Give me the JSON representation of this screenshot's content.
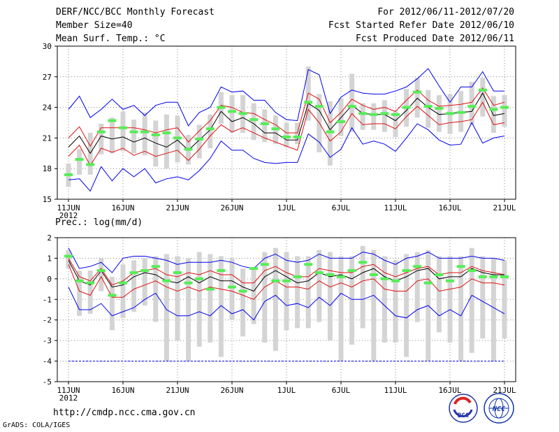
{
  "header": {
    "title": "DERF/NCC/BCC Monthly Forecast",
    "member_size": "Member Size=40",
    "variable": "Mean Surf. Temp.: °C",
    "period": "For 2012/06/11-2012/07/20",
    "fcst_started": "Fcst Started Refer Date 2012/06/10",
    "fcst_produced": "Fcst Produced Date 2012/06/11"
  },
  "footer": {
    "url": "http://cmdp.ncc.cma.gov.cn",
    "grads": "GrADS: COLA/IGES",
    "logo1_text": "BCC",
    "logo2_text": "NCC"
  },
  "colors": {
    "max_min": "#0000ee",
    "pct": "#dd1111",
    "mean": "#000000",
    "obs": "#55ee55",
    "box": "#d4d4d4",
    "grid": "#888888"
  },
  "chart_data": [
    {
      "type": "line",
      "title": "Mean Surf. Temp.: °C",
      "xlabel": "",
      "ylabel": "°C",
      "ylim": [
        15,
        30
      ],
      "yticks": [
        15,
        18,
        21,
        24,
        27,
        30
      ],
      "days": 40,
      "xticks": [
        {
          "day": 1,
          "label": "11JUN",
          "sub": "2012"
        },
        {
          "day": 6,
          "label": "16JUN"
        },
        {
          "day": 11,
          "label": "21JUN"
        },
        {
          "day": 16,
          "label": "26JUN"
        },
        {
          "day": 21,
          "label": "1JUL"
        },
        {
          "day": 26,
          "label": "6JUL"
        },
        {
          "day": 31,
          "label": "11JUL"
        },
        {
          "day": 36,
          "label": "16JUL"
        },
        {
          "day": 41,
          "label": "21JUL"
        }
      ],
      "series": [
        {
          "name": "max",
          "values": [
            23.8,
            25.1,
            23,
            23.8,
            24.8,
            23.8,
            24.2,
            23.2,
            24.2,
            24.5,
            24.5,
            22.2,
            23.5,
            24,
            26,
            25.5,
            25.6,
            24.7,
            24.7,
            23.5,
            22.8,
            22.7,
            27.7,
            27.2,
            23.4,
            25,
            25.7,
            25.4,
            25.3,
            25.3,
            25.6,
            26,
            26.8,
            27.8,
            26.1,
            24.5,
            26,
            26,
            27.5,
            25.6,
            25.6
          ]
        },
        {
          "name": "p90",
          "values": [
            21,
            22.1,
            20.2,
            22,
            22,
            22,
            22,
            21.8,
            21.5,
            21.8,
            22,
            20.6,
            21.7,
            22.7,
            24.2,
            24,
            23.5,
            23.4,
            22.8,
            22.3,
            21.5,
            21.5,
            25.4,
            24.8,
            22.5,
            23.5,
            24.8,
            24.2,
            23.8,
            24,
            23.6,
            24.7,
            25.7,
            24.7,
            24.1,
            24.2,
            24.3,
            24.5,
            25.9,
            24.2,
            24.5
          ]
        },
        {
          "name": "mean",
          "values": [
            20.1,
            21.2,
            19.5,
            21.2,
            20.9,
            21.1,
            20.6,
            21,
            20.5,
            20.1,
            20.8,
            19.8,
            20.8,
            21.8,
            23.6,
            22.6,
            23,
            22.4,
            21.5,
            21.5,
            20.8,
            20.8,
            24.4,
            23.7,
            21.8,
            23,
            24.2,
            23.4,
            23.3,
            23.3,
            22.7,
            23.7,
            24.9,
            24,
            23.3,
            23.4,
            23.5,
            23.6,
            25.4,
            23.2,
            23.4
          ]
        },
        {
          "name": "p10",
          "values": [
            19.2,
            20.3,
            18.3,
            20,
            19.6,
            20,
            19.3,
            19.7,
            19.2,
            19.5,
            19.8,
            18.8,
            19.9,
            21.2,
            22.3,
            21.6,
            22,
            21.5,
            21,
            20.6,
            20.2,
            19.8,
            23.8,
            22.5,
            20.7,
            21.6,
            23.4,
            22.3,
            22.4,
            22.4,
            21.9,
            23.1,
            24.1,
            23.2,
            22.3,
            22.5,
            22.6,
            22.8,
            24.5,
            22.3,
            22.5
          ]
        },
        {
          "name": "min",
          "values": [
            16.9,
            17,
            15.8,
            18.2,
            16.8,
            18,
            17.2,
            18,
            16.6,
            17,
            17.2,
            16.9,
            17.8,
            19,
            20.7,
            19.8,
            19.8,
            19,
            18.6,
            18.5,
            18.6,
            18.6,
            21.4,
            20.6,
            19.1,
            19.9,
            22,
            20.4,
            20.7,
            20.4,
            19.7,
            21,
            22.4,
            21.8,
            20.8,
            20.3,
            20.4,
            22.5,
            20.5,
            21,
            21.2
          ]
        },
        {
          "name": "obs",
          "values": [
            17.4,
            18.9,
            18.4,
            21.6,
            22.7,
            22,
            21.6,
            21.6,
            21.3,
            21.5,
            21,
            19.9,
            20.9,
            21.9,
            24,
            23.6,
            23.4,
            22.8,
            22.4,
            21.9,
            21.1,
            21.1,
            24.5,
            24.1,
            21.6,
            22.6,
            24.1,
            23.4,
            23.3,
            23.4,
            23.3,
            24,
            25.5,
            24.1,
            23.9,
            23.4,
            23.5,
            24.1,
            25.7,
            23.8,
            24
          ]
        }
      ],
      "box_q1": [
        16.2,
        17.4,
        17.4,
        19.4,
        19.5,
        19.7,
        19.5,
        19.3,
        18.2,
        18,
        18.6,
        18.4,
        19,
        20,
        22.4,
        21.5,
        21.5,
        20.8,
        20.6,
        20.4,
        20.1,
        20.4,
        22.7,
        19.6,
        18.3,
        21.2,
        21.6,
        21.8,
        21.8,
        21.6,
        21.1,
        22.1,
        23,
        22,
        21.6,
        21.4,
        21.6,
        22.3,
        23.1,
        21.5,
        22.1
      ],
      "box_q3": [
        18.5,
        19.9,
        21.5,
        22.4,
        23,
        23.6,
        22.8,
        23.5,
        22.7,
        23.3,
        23.2,
        21.3,
        22.3,
        23.3,
        25.5,
        25.2,
        25.2,
        24.4,
        23.8,
        23.2,
        22.5,
        22.5,
        28,
        25.3,
        24.6,
        24.9,
        27.3,
        24.4,
        24.4,
        24.7,
        23.6,
        25.8,
        26.9,
        25.7,
        25.2,
        25.3,
        25.6,
        26.5,
        26.9,
        25.1,
        25.2
      ]
    },
    {
      "type": "line",
      "title": "Prec.: log(mm/d)",
      "xlabel": "",
      "ylabel": "log(mm/d)",
      "ylim": [
        -5,
        2
      ],
      "yticks": [
        -5,
        -4,
        -3,
        -2,
        -1,
        0,
        1,
        2
      ],
      "days": 40,
      "xticks": [
        {
          "day": 1,
          "label": "11JUN",
          "sub": "2012"
        },
        {
          "day": 6,
          "label": "16JUN"
        },
        {
          "day": 11,
          "label": "21JUN"
        },
        {
          "day": 16,
          "label": "26JUN"
        },
        {
          "day": 21,
          "label": "1JUL"
        },
        {
          "day": 26,
          "label": "6JUL"
        },
        {
          "day": 31,
          "label": "11JUL"
        },
        {
          "day": 36,
          "label": "16JUL"
        },
        {
          "day": 41,
          "label": "21JUL"
        }
      ],
      "series": [
        {
          "name": "max",
          "values": [
            1.5,
            0.5,
            0.6,
            0.8,
            0.3,
            1,
            1.1,
            1.1,
            1,
            0.9,
            0.7,
            0.8,
            0.8,
            0.8,
            0.9,
            0.8,
            0.6,
            0.5,
            1,
            1.2,
            0.9,
            0.8,
            0.9,
            1.2,
            1,
            1,
            1,
            1.3,
            1.2,
            0.9,
            0.7,
            1,
            1.1,
            1.3,
            1,
            1,
            1,
            1.1,
            1,
            1,
            0.9
          ]
        },
        {
          "name": "p90",
          "values": [
            1,
            0.1,
            -0.1,
            0.5,
            -0.3,
            -0.1,
            0.3,
            0.4,
            0.5,
            0.2,
            0.1,
            0.3,
            0.2,
            0.4,
            0.2,
            0.2,
            -0.2,
            -0.2,
            0.4,
            0.6,
            0.3,
            0.1,
            0.1,
            0.5,
            0.4,
            0.3,
            0.3,
            0.6,
            0.7,
            0.3,
            0.1,
            0.3,
            0.5,
            0.6,
            0.2,
            0.3,
            0.3,
            0.6,
            0.4,
            0.3,
            0.2
          ]
        },
        {
          "name": "mean",
          "values": [
            0.9,
            -0.1,
            -0.3,
            0.4,
            -0.4,
            -0.3,
            0.1,
            0.3,
            0.2,
            -0.1,
            -0.2,
            0.1,
            -0.2,
            0.1,
            -0.1,
            -0.1,
            -0.4,
            -0.6,
            0.1,
            0.4,
            0.1,
            -0.2,
            -0.1,
            0.3,
            0.1,
            0.2,
            0,
            0.3,
            0.5,
            0.1,
            -0.1,
            0.1,
            0.4,
            0.5,
            0,
            0.1,
            0.1,
            0.5,
            0.3,
            0.2,
            0.2
          ]
        },
        {
          "name": "p10",
          "values": [
            0.7,
            -0.6,
            -0.8,
            0.1,
            -0.9,
            -0.9,
            -0.5,
            -0.3,
            -0.1,
            -0.4,
            -0.6,
            -0.4,
            -0.6,
            -0.4,
            -0.5,
            -0.6,
            -0.8,
            -1,
            -0.4,
            -0.1,
            -0.4,
            -0.4,
            -0.5,
            -0.1,
            -0.4,
            -0.2,
            -0.4,
            -0.1,
            0,
            -0.5,
            -0.6,
            -0.6,
            -0.1,
            0,
            -0.6,
            -0.5,
            -0.4,
            0,
            -0.2,
            -0.2,
            -0.3
          ]
        },
        {
          "name": "min",
          "values": [
            -0.4,
            -1.5,
            -1.5,
            -1.2,
            -1.8,
            -1.6,
            -1.4,
            -1,
            -0.7,
            -1.5,
            -1.8,
            -1.8,
            -1.6,
            -1.8,
            -1.3,
            -1.7,
            -1.5,
            -2,
            -1.1,
            -0.8,
            -1.3,
            -1.2,
            -1.4,
            -0.9,
            -1.3,
            -0.7,
            -1,
            -1,
            -0.8,
            -1.3,
            -1.8,
            -1.9,
            -1.5,
            -1.3,
            -1.8,
            -1.5,
            -1.8,
            -0.8,
            -1.1,
            -1.4,
            -1.7
          ]
        },
        {
          "name": "minbound",
          "values": [
            -4,
            -4,
            -4,
            -4,
            -4,
            -4,
            -4,
            -4,
            -4,
            -4,
            -4,
            -4,
            -4,
            -4,
            -4,
            -4,
            -4,
            -4,
            -4,
            -4,
            -4,
            -4,
            -4,
            -4,
            -4,
            -4,
            -4,
            -4,
            -4,
            -4,
            -4,
            -4,
            -4,
            -4,
            -4,
            -4,
            -4,
            -4,
            -4,
            -4,
            -4
          ]
        },
        {
          "name": "obs",
          "values": [
            1.1,
            -0.1,
            -0.2,
            0.4,
            -0.8,
            -0.2,
            0.3,
            0.4,
            0.6,
            -0.1,
            0.3,
            -0.2,
            0,
            -0.5,
            0.4,
            -0.4,
            -0.6,
            0.5,
            0.7,
            -0.1,
            -0.1,
            0.1,
            0.7,
            0.3,
            0.2,
            0.1,
            0.4,
            0.8,
            0.2,
            0,
            -0.1,
            0.4,
            0.6,
            -0.2,
            0.2,
            -0.1,
            0.6,
            0.4,
            0.1,
            0.1,
            0.1
          ]
        }
      ],
      "box_q1": [
        0.5,
        -1.8,
        -1.7,
        -0.6,
        -2.5,
        -1.9,
        -1.6,
        -1.3,
        -2.1,
        -4,
        -3,
        -4,
        -3.3,
        -3.1,
        -3.8,
        -2,
        -2.8,
        -2.2,
        -3.1,
        -3.5,
        -2.5,
        -2.4,
        -2.4,
        -2.1,
        -3,
        -4,
        -3.2,
        -2.4,
        -4,
        -3.1,
        -3.1,
        -3.8,
        -2.1,
        -4,
        -2.6,
        -3.1,
        -4,
        -3.6,
        -2.9,
        -4,
        -2.9
      ],
      "box_q3": [
        1.4,
        0.4,
        0.4,
        1,
        0.1,
        0.7,
        0.9,
        1,
        1.1,
        1.2,
        1.1,
        1,
        1.3,
        1.2,
        1.1,
        1,
        0.5,
        0.5,
        1.3,
        1.5,
        1.3,
        1.1,
        1.1,
        1.4,
        1.3,
        1.1,
        1.1,
        1.6,
        1.4,
        1.1,
        0.9,
        1.2,
        1.3,
        1.4,
        1.1,
        1.1,
        1.1,
        1.5,
        1.1,
        1,
        0.9
      ]
    }
  ]
}
